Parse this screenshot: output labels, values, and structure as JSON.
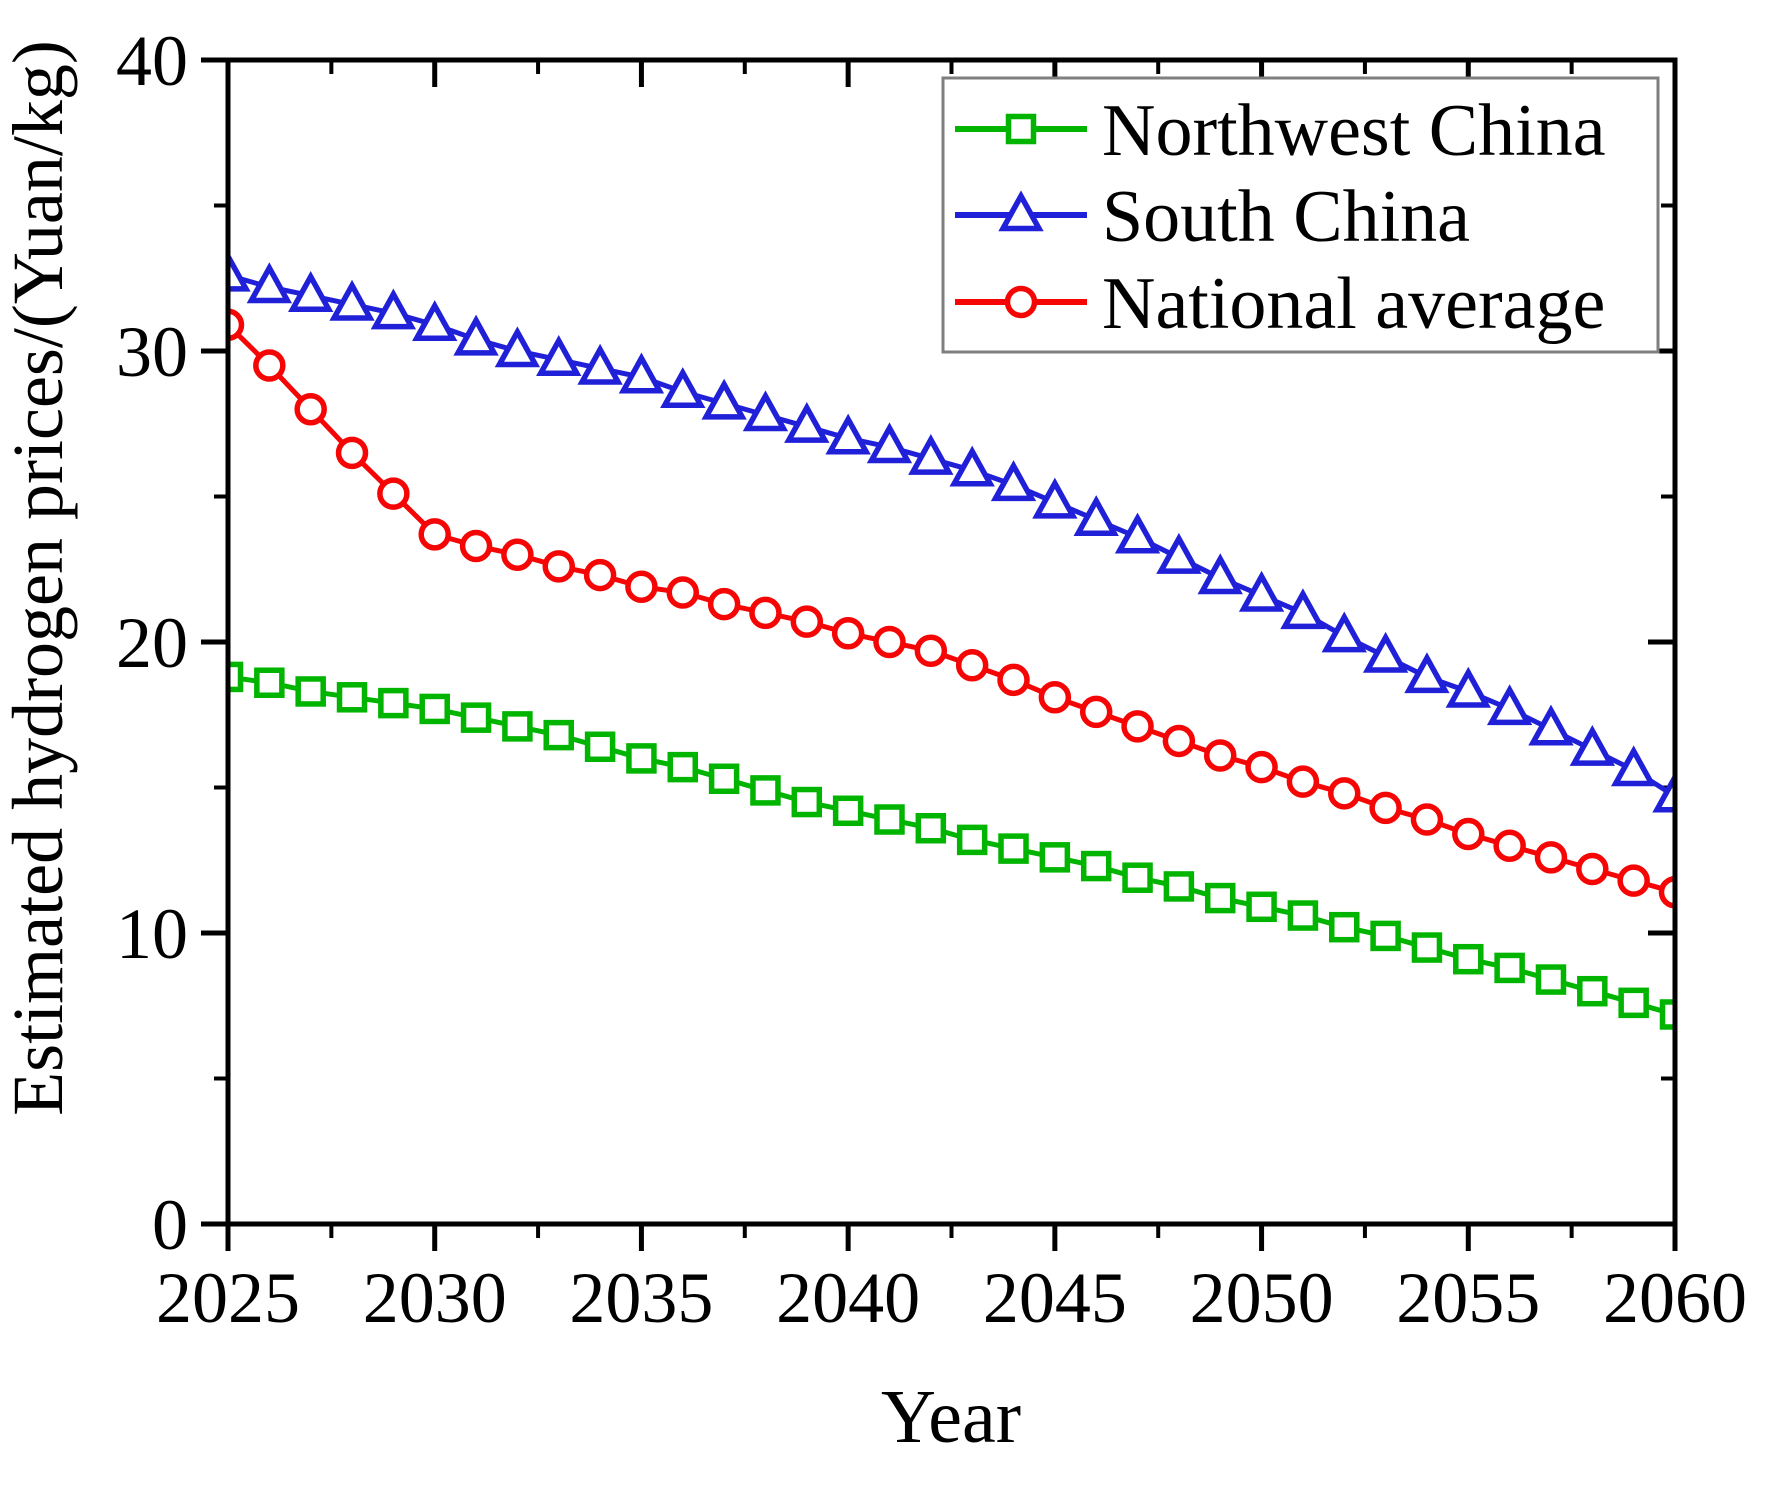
{
  "chart_data": {
    "type": "line",
    "title": "",
    "xlabel": "Year",
    "ylabel": "Estimated hydrogen prices/(Yuan/kg)",
    "xlim": [
      2025,
      2060
    ],
    "ylim": [
      0,
      40
    ],
    "x_major_ticks": [
      2025,
      2030,
      2035,
      2040,
      2045,
      2050,
      2055,
      2060
    ],
    "x_minor_ticks": [
      2027.5,
      2032.5,
      2037.5,
      2042.5,
      2047.5,
      2052.5,
      2057.5
    ],
    "y_major_ticks": [
      0,
      10,
      20,
      30,
      40
    ],
    "y_minor_ticks": [
      5,
      15,
      25,
      35
    ],
    "grid": false,
    "legend_position": "upper-right-inside",
    "x": [
      2025,
      2026,
      2027,
      2028,
      2029,
      2030,
      2031,
      2032,
      2033,
      2034,
      2035,
      2036,
      2037,
      2038,
      2039,
      2040,
      2041,
      2042,
      2043,
      2044,
      2045,
      2046,
      2047,
      2048,
      2049,
      2050,
      2051,
      2052,
      2053,
      2054,
      2055,
      2056,
      2057,
      2058,
      2059,
      2060
    ],
    "series": [
      {
        "name": "Northwest China",
        "color": "#00b400",
        "marker": "square",
        "values": [
          18.8,
          18.6,
          18.3,
          18.1,
          17.9,
          17.7,
          17.4,
          17.1,
          16.8,
          16.4,
          16.0,
          15.7,
          15.3,
          14.9,
          14.5,
          14.2,
          13.9,
          13.6,
          13.2,
          12.9,
          12.6,
          12.3,
          11.9,
          11.6,
          11.2,
          10.9,
          10.6,
          10.2,
          9.9,
          9.5,
          9.1,
          8.8,
          8.4,
          8.0,
          7.6,
          7.2
        ]
      },
      {
        "name": "South China",
        "color": "#2020d8",
        "marker": "triangle-up",
        "values": [
          32.6,
          32.2,
          31.9,
          31.6,
          31.3,
          30.9,
          30.4,
          30.0,
          29.7,
          29.4,
          29.1,
          28.6,
          28.2,
          27.8,
          27.4,
          27.0,
          26.7,
          26.3,
          25.9,
          25.4,
          24.8,
          24.2,
          23.6,
          22.9,
          22.2,
          21.6,
          21.0,
          20.2,
          19.5,
          18.8,
          18.3,
          17.7,
          17.0,
          16.3,
          15.6,
          14.7
        ]
      },
      {
        "name": "National average",
        "color": "#f60505",
        "marker": "circle",
        "values": [
          30.9,
          29.5,
          28.0,
          26.5,
          25.1,
          23.7,
          23.3,
          23.0,
          22.6,
          22.3,
          21.9,
          21.7,
          21.3,
          21.0,
          20.7,
          20.3,
          20.0,
          19.7,
          19.2,
          18.7,
          18.1,
          17.6,
          17.1,
          16.6,
          16.1,
          15.7,
          15.2,
          14.8,
          14.3,
          13.9,
          13.4,
          13.0,
          12.6,
          12.2,
          11.8,
          11.4
        ]
      }
    ]
  },
  "legend": {
    "entries": [
      "Northwest China",
      "South China",
      "National average"
    ],
    "border_color": "#7f7f7f",
    "background": "#ffffff"
  },
  "axis": {
    "frame_color": "#000000",
    "text_color": "#000000"
  }
}
